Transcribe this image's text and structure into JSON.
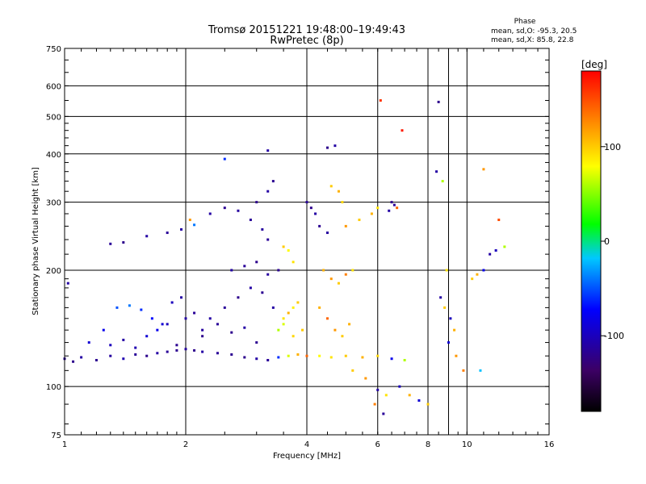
{
  "chart_data": {
    "type": "scatter",
    "title": "Tromsø 20151221 19:48:00–19:49:43",
    "subtitle": "RwPretec (8p)",
    "xlabel": "Frequency [MHz]",
    "ylabel": "Stationary phase Virtual Height [km]",
    "x_scale": "log",
    "y_scale": "log",
    "xlim": [
      1,
      16
    ],
    "ylim": [
      75,
      750
    ],
    "x_ticks": [
      1,
      2,
      4,
      6,
      8,
      10,
      16
    ],
    "y_ticks": [
      75,
      100,
      200,
      300,
      400,
      500,
      600,
      750
    ],
    "grid": true,
    "stats": {
      "heading": "Phase",
      "o_line": "mean, sd,O: -95.3, 20.5",
      "x_line": "mean, sd,X: 85.8, 22.8"
    },
    "colorbar": {
      "label": "[deg]",
      "ticks": [
        -100,
        0,
        100
      ],
      "range": [
        -180,
        180
      ],
      "colors": [
        "#000000",
        "#3c0064",
        "#0000ff",
        "#00c8ff",
        "#00ff00",
        "#ffff00",
        "#ff8000",
        "#ff0000"
      ]
    },
    "series": [
      {
        "points": [
          [
            1.0,
            118,
            -115
          ],
          [
            1.05,
            116,
            -120
          ],
          [
            1.1,
            119,
            -110
          ],
          [
            1.2,
            117,
            -118
          ],
          [
            1.3,
            120,
            -112
          ],
          [
            1.4,
            118,
            -105
          ],
          [
            1.5,
            121,
            -115
          ],
          [
            1.6,
            120,
            -120
          ],
          [
            1.7,
            122,
            -110
          ],
          [
            1.8,
            123,
            -115
          ],
          [
            1.9,
            124,
            -118
          ],
          [
            2.0,
            125,
            -112
          ],
          [
            2.1,
            124,
            -120
          ],
          [
            2.2,
            123,
            -110
          ],
          [
            2.4,
            122,
            -115
          ],
          [
            2.6,
            121,
            -118
          ],
          [
            2.8,
            119,
            -120
          ],
          [
            3.0,
            118,
            -110
          ],
          [
            3.2,
            117,
            -115
          ],
          [
            3.4,
            119,
            -60
          ],
          [
            3.6,
            120,
            70
          ],
          [
            3.8,
            121,
            110
          ],
          [
            4.0,
            120,
            140
          ],
          [
            4.3,
            120,
            80
          ],
          [
            4.6,
            119,
            90
          ],
          [
            5.0,
            120,
            100
          ],
          [
            5.5,
            119,
            110
          ],
          [
            6.0,
            120,
            95
          ],
          [
            6.5,
            118,
            -80
          ],
          [
            7.0,
            117,
            60
          ],
          [
            1.02,
            185,
            -110
          ],
          [
            1.15,
            130,
            -90
          ],
          [
            1.25,
            140,
            -80
          ],
          [
            1.35,
            160,
            -50
          ],
          [
            1.45,
            162,
            -40
          ],
          [
            1.55,
            158,
            -60
          ],
          [
            1.65,
            150,
            -70
          ],
          [
            1.75,
            145,
            -90
          ],
          [
            1.85,
            165,
            -100
          ],
          [
            1.95,
            170,
            -110
          ],
          [
            1.3,
            234,
            -115
          ],
          [
            1.4,
            236,
            -120
          ],
          [
            1.6,
            245,
            -110
          ],
          [
            1.8,
            250,
            -115
          ],
          [
            1.95,
            255,
            -110
          ],
          [
            2.1,
            262,
            -40
          ],
          [
            2.05,
            270,
            120
          ],
          [
            2.3,
            280,
            -110
          ],
          [
            2.5,
            290,
            -118
          ],
          [
            2.7,
            285,
            -112
          ],
          [
            2.5,
            388,
            -60
          ],
          [
            2.9,
            270,
            -115
          ],
          [
            3.0,
            300,
            -120
          ],
          [
            3.2,
            320,
            -110
          ],
          [
            3.3,
            340,
            -118
          ],
          [
            3.1,
            255,
            -112
          ],
          [
            3.2,
            240,
            -115
          ],
          [
            3.5,
            230,
            100
          ],
          [
            3.6,
            225,
            80
          ],
          [
            3.7,
            210,
            90
          ],
          [
            2.6,
            200,
            -110
          ],
          [
            2.8,
            205,
            -115
          ],
          [
            3.0,
            210,
            -120
          ],
          [
            3.2,
            195,
            -112
          ],
          [
            3.4,
            200,
            -118
          ],
          [
            3.3,
            160,
            -110
          ],
          [
            3.5,
            150,
            90
          ],
          [
            3.6,
            155,
            110
          ],
          [
            3.7,
            160,
            85
          ],
          [
            3.8,
            165,
            100
          ],
          [
            3.4,
            140,
            60
          ],
          [
            3.5,
            145,
            70
          ],
          [
            3.7,
            135,
            95
          ],
          [
            3.9,
            140,
            100
          ],
          [
            3.2,
            408,
            -110
          ],
          [
            4.0,
            300,
            -115
          ],
          [
            4.1,
            290,
            -120
          ],
          [
            4.2,
            280,
            -110
          ],
          [
            4.3,
            260,
            -118
          ],
          [
            4.5,
            250,
            -112
          ],
          [
            4.5,
            415,
            -120
          ],
          [
            4.7,
            420,
            -110
          ],
          [
            4.6,
            330,
            100
          ],
          [
            4.8,
            320,
            110
          ],
          [
            4.9,
            300,
            95
          ],
          [
            4.4,
            200,
            110
          ],
          [
            4.6,
            190,
            120
          ],
          [
            4.8,
            185,
            100
          ],
          [
            5.0,
            195,
            130
          ],
          [
            5.2,
            200,
            90
          ],
          [
            4.3,
            160,
            110
          ],
          [
            4.5,
            150,
            140
          ],
          [
            4.7,
            140,
            120
          ],
          [
            4.9,
            135,
            100
          ],
          [
            5.1,
            145,
            110
          ],
          [
            5.0,
            260,
            120
          ],
          [
            5.4,
            270,
            100
          ],
          [
            5.8,
            280,
            110
          ],
          [
            6.0,
            290,
            90
          ],
          [
            6.4,
            285,
            -110
          ],
          [
            6.5,
            300,
            -120
          ],
          [
            6.6,
            295,
            -115
          ],
          [
            6.7,
            290,
            140
          ],
          [
            6.1,
            550,
            160
          ],
          [
            6.9,
            460,
            170
          ],
          [
            5.2,
            110,
            100
          ],
          [
            5.6,
            105,
            120
          ],
          [
            6.0,
            98,
            -110
          ],
          [
            6.3,
            95,
            90
          ],
          [
            6.8,
            100,
            -100
          ],
          [
            7.2,
            95,
            110
          ],
          [
            7.6,
            92,
            -90
          ],
          [
            8.0,
            90,
            100
          ],
          [
            5.9,
            90,
            130
          ],
          [
            6.2,
            85,
            -115
          ],
          [
            8.5,
            545,
            -120
          ],
          [
            8.4,
            360,
            -110
          ],
          [
            8.7,
            340,
            60
          ],
          [
            8.9,
            200,
            90
          ],
          [
            8.6,
            170,
            -110
          ],
          [
            8.8,
            160,
            100
          ],
          [
            9.1,
            150,
            -100
          ],
          [
            9.3,
            140,
            110
          ],
          [
            9.0,
            130,
            -90
          ],
          [
            9.4,
            120,
            120
          ],
          [
            10.3,
            190,
            100
          ],
          [
            10.6,
            195,
            110
          ],
          [
            11.0,
            200,
            -80
          ],
          [
            11.4,
            220,
            -110
          ],
          [
            11.8,
            225,
            -100
          ],
          [
            12.4,
            230,
            60
          ],
          [
            11.0,
            365,
            120
          ],
          [
            12.0,
            270,
            150
          ],
          [
            10.8,
            110,
            -20
          ],
          [
            9.8,
            110,
            130
          ],
          [
            2.3,
            150,
            -110
          ],
          [
            2.5,
            160,
            -115
          ],
          [
            2.7,
            170,
            -120
          ],
          [
            2.9,
            180,
            -110
          ],
          [
            3.1,
            175,
            -118
          ],
          [
            2.2,
            140,
            -112
          ],
          [
            2.4,
            145,
            -115
          ],
          [
            2.6,
            138,
            -120
          ],
          [
            2.8,
            142,
            -110
          ],
          [
            3.0,
            130,
            -118
          ],
          [
            1.6,
            135,
            -90
          ],
          [
            1.7,
            140,
            -80
          ],
          [
            1.8,
            145,
            -100
          ],
          [
            2.0,
            150,
            -110
          ],
          [
            2.1,
            155,
            -115
          ],
          [
            1.3,
            128,
            -100
          ],
          [
            1.4,
            132,
            -110
          ],
          [
            1.5,
            126,
            -105
          ],
          [
            1.9,
            128,
            -118
          ],
          [
            2.2,
            135,
            -120
          ]
        ]
      }
    ]
  }
}
